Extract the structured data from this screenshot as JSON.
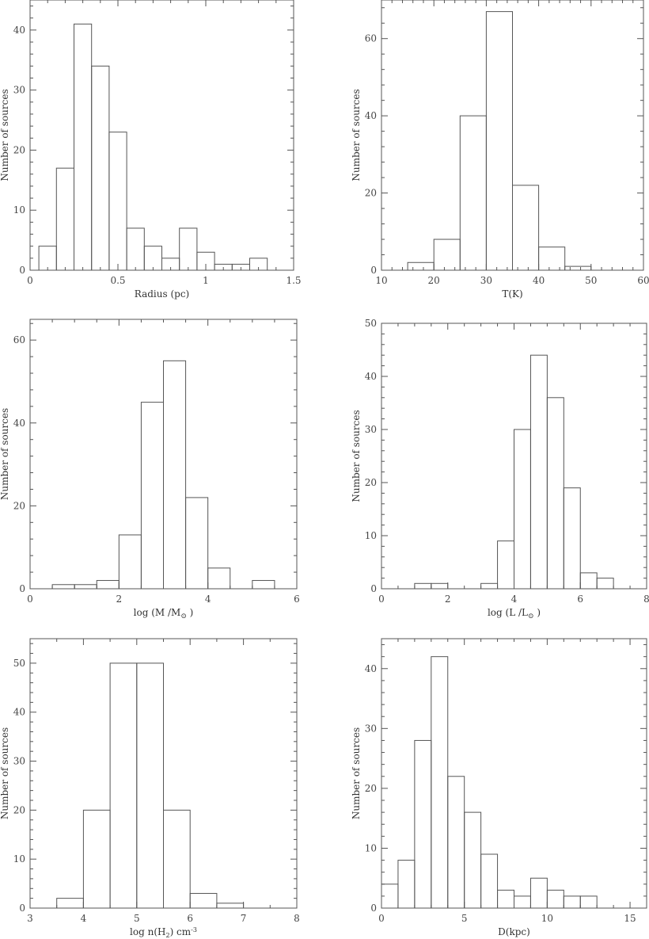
{
  "chart_data": [
    {
      "type": "bar",
      "histogram": true,
      "xlabel": "Radius (pc)",
      "ylabel": "Number of sources",
      "xlim": [
        0,
        1.5
      ],
      "ylim": [
        0,
        45
      ],
      "xticks": [
        0,
        0.5,
        1,
        1.5
      ],
      "xtick_labels": [
        "0",
        "0.5",
        "1",
        "1.5"
      ],
      "xminor": 0.1,
      "yticks": [
        0,
        10,
        20,
        30,
        40
      ],
      "yminor": 2,
      "bin_edges": [
        0.05,
        0.15,
        0.25,
        0.35,
        0.45,
        0.55,
        0.65,
        0.75,
        0.85,
        0.95,
        1.05,
        1.15,
        1.25,
        1.35
      ],
      "values": [
        4,
        17,
        41,
        34,
        23,
        7,
        4,
        2,
        7,
        3,
        1,
        1,
        2
      ]
    },
    {
      "type": "bar",
      "histogram": true,
      "xlabel": "T(K)",
      "ylabel": "Number of sources",
      "xlim": [
        10,
        60
      ],
      "ylim": [
        0,
        70
      ],
      "xticks": [
        10,
        20,
        30,
        40,
        50,
        60
      ],
      "xtick_labels": [
        "10",
        "20",
        "30",
        "40",
        "50",
        "60"
      ],
      "xminor": 2,
      "yticks": [
        0,
        20,
        40,
        60
      ],
      "yminor": 4,
      "bin_edges": [
        15,
        20,
        25,
        30,
        35,
        40,
        45,
        50
      ],
      "values": [
        2,
        8,
        40,
        67,
        22,
        6,
        1
      ]
    },
    {
      "type": "bar",
      "histogram": true,
      "xlabel": "log (M /M",
      "xlabel_symbol": "⊙",
      "xlabel_close": " )",
      "ylabel": "Number of sources",
      "xlim": [
        0,
        6
      ],
      "ylim": [
        0,
        65
      ],
      "xticks": [
        0,
        2,
        4,
        6
      ],
      "xtick_labels": [
        "0",
        "2",
        "4",
        "6"
      ],
      "xminor": 0.5,
      "yticks": [
        0,
        20,
        40,
        60
      ],
      "yminor": 4,
      "bin_edges": [
        0.5,
        1.0,
        1.5,
        2.0,
        2.5,
        3.0,
        3.5,
        4.0,
        4.5,
        5.0,
        5.5
      ],
      "values": [
        1,
        1,
        2,
        13,
        45,
        55,
        22,
        5,
        0,
        2
      ]
    },
    {
      "type": "bar",
      "histogram": true,
      "xlabel": "log (L /L",
      "xlabel_symbol": "⊙",
      "xlabel_close": " )",
      "ylabel": "Number of sources",
      "xlim": [
        0,
        8
      ],
      "ylim": [
        0,
        50
      ],
      "xticks": [
        0,
        2,
        4,
        6,
        8
      ],
      "xtick_labels": [
        "0",
        "2",
        "4",
        "6",
        "8"
      ],
      "xminor": 0.5,
      "yticks": [
        0,
        10,
        20,
        30,
        40,
        50
      ],
      "yminor": 2,
      "bin_edges": [
        1.0,
        1.5,
        2.0,
        2.5,
        3.0,
        3.5,
        4.0,
        4.5,
        5.0,
        5.5,
        6.0,
        6.5,
        7.0
      ],
      "values": [
        1,
        1,
        0,
        0,
        1,
        9,
        30,
        44,
        36,
        19,
        3,
        2
      ]
    },
    {
      "type": "bar",
      "histogram": true,
      "xlabel": "log n(H",
      "xlabel_sub": "2",
      "xlabel_close": ") cm",
      "xlabel_sup": "-3",
      "ylabel": "Number of sources",
      "xlim": [
        3,
        8
      ],
      "ylim": [
        0,
        55
      ],
      "xticks": [
        3,
        4,
        5,
        6,
        7,
        8
      ],
      "xtick_labels": [
        "3",
        "4",
        "5",
        "6",
        "7",
        "8"
      ],
      "xminor": 0.5,
      "yticks": [
        0,
        10,
        20,
        30,
        40,
        50
      ],
      "yminor": 2,
      "bin_edges": [
        3.5,
        4.0,
        4.5,
        5.0,
        5.5,
        6.0,
        6.5,
        7.0
      ],
      "values": [
        2,
        20,
        50,
        50,
        20,
        3,
        1
      ]
    },
    {
      "type": "bar",
      "histogram": true,
      "xlabel": "D(kpc)",
      "ylabel": "Number of sources",
      "xlim": [
        0,
        16
      ],
      "ylim": [
        0,
        45
      ],
      "xticks": [
        0,
        5,
        10,
        15
      ],
      "xtick_labels": [
        "0",
        "5",
        "10",
        "15"
      ],
      "xminor": 1,
      "yticks": [
        0,
        10,
        20,
        30,
        40
      ],
      "yminor": 2,
      "bin_edges": [
        0,
        1,
        2,
        3,
        4,
        5,
        6,
        7,
        8,
        9,
        10,
        11,
        12,
        13
      ],
      "values": [
        4,
        8,
        28,
        42,
        22,
        16,
        9,
        3,
        2,
        5,
        3,
        2,
        2
      ]
    }
  ]
}
